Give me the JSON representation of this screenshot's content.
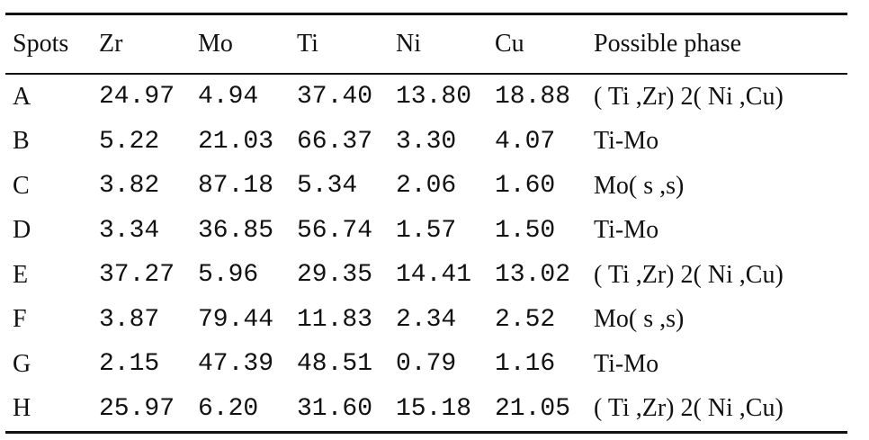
{
  "table": {
    "headers": [
      "Spots",
      "Zr",
      "Mo",
      "Ti",
      "Ni",
      "Cu",
      "Possible phase"
    ],
    "rows": [
      {
        "spot": "A",
        "zr": "24.97",
        "mo": "4.94",
        "ti": "37.40",
        "ni": "13.80",
        "cu": "18.88",
        "phase": "( Ti ,Zr) 2( Ni ,Cu)"
      },
      {
        "spot": "B",
        "zr": "5.22",
        "mo": "21.03",
        "ti": "66.37",
        "ni": "3.30",
        "cu": "4.07",
        "phase": "Ti-Mo"
      },
      {
        "spot": "C",
        "zr": "3.82",
        "mo": "87.18",
        "ti": "5.34",
        "ni": "2.06",
        "cu": "1.60",
        "phase": "Mo( s ,s)"
      },
      {
        "spot": "D",
        "zr": "3.34",
        "mo": "36.85",
        "ti": "56.74",
        "ni": "1.57",
        "cu": "1.50",
        "phase": "Ti-Mo"
      },
      {
        "spot": "E",
        "zr": "37.27",
        "mo": "5.96",
        "ti": "29.35",
        "ni": "14.41",
        "cu": "13.02",
        "phase": "( Ti ,Zr) 2( Ni ,Cu)"
      },
      {
        "spot": "F",
        "zr": "3.87",
        "mo": "79.44",
        "ti": "11.83",
        "ni": "2.34",
        "cu": "2.52",
        "phase": "Mo( s ,s)"
      },
      {
        "spot": "G",
        "zr": "2.15",
        "mo": "47.39",
        "ti": "48.51",
        "ni": "0.79",
        "cu": "1.16",
        "phase": "Ti-Mo"
      },
      {
        "spot": "H",
        "zr": "25.97",
        "mo": "6.20",
        "ti": "31.60",
        "ni": "15.18",
        "cu": "21.05",
        "phase": "( Ti ,Zr) 2( Ni ,Cu)"
      }
    ]
  }
}
